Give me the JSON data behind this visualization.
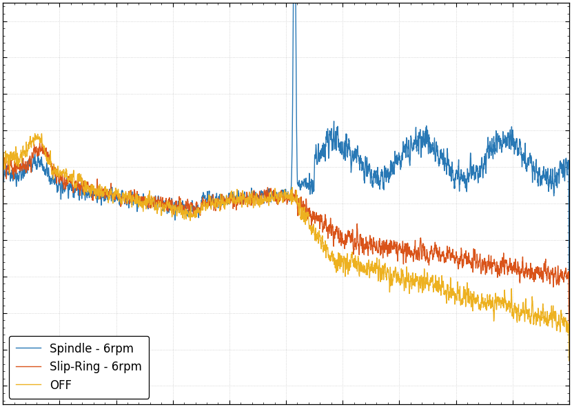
{
  "line_colors": [
    "#2878b5",
    "#d95319",
    "#edb120"
  ],
  "line_labels": [
    "Spindle - 6rpm",
    "Slip-Ring - 6rpm",
    "OFF"
  ],
  "background_color": "#ffffff",
  "seed": 42,
  "figsize": [
    8.3,
    5.9
  ],
  "dpi": 100,
  "legend_loc": "lower left",
  "legend_fontsize": 12,
  "grid_major_color": "#c8c8c8",
  "grid_minor_color": "#e0e0e0",
  "tick_direction": "in"
}
